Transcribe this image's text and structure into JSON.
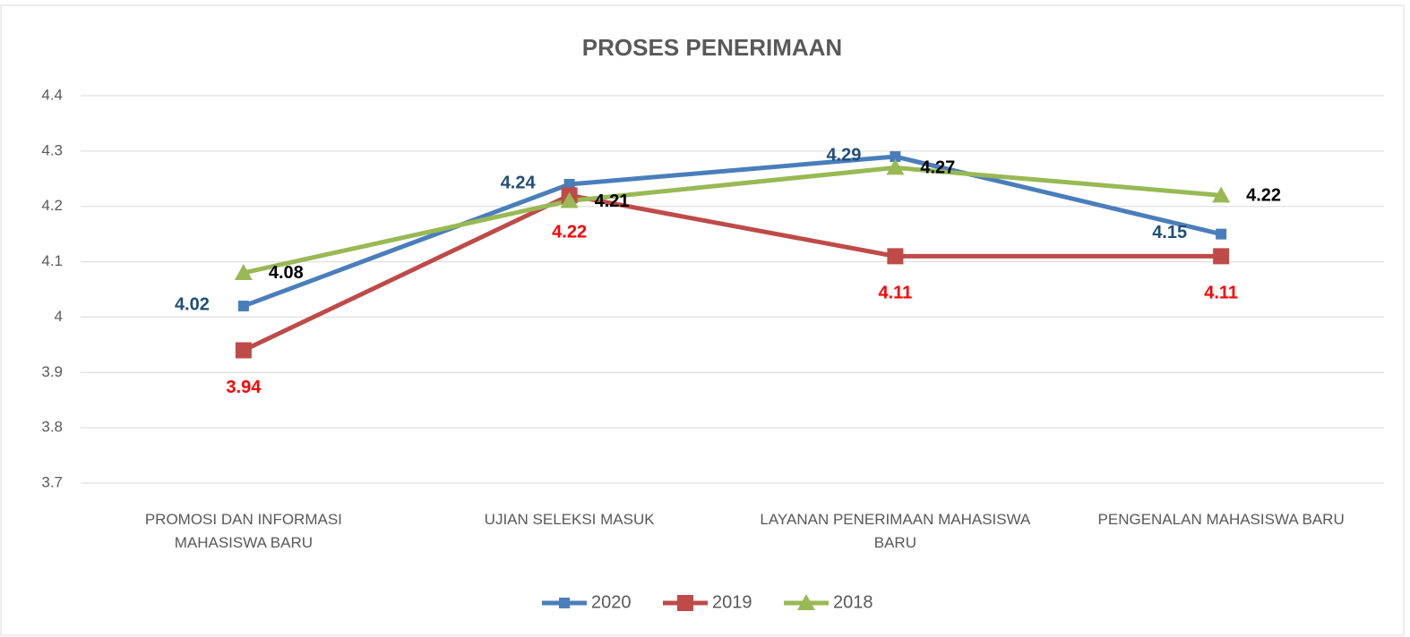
{
  "chart_data": {
    "type": "line",
    "title": "PROSES PENERIMAAN",
    "categories": [
      "PROMOSI DAN INFORMASI MAHASISWA BARU",
      "UJIAN SELEKSI MASUK",
      "LAYANAN PENERIMAAN MAHASISWA BARU",
      "PENGENALAN MAHASISWA BARU"
    ],
    "series": [
      {
        "name": "2020",
        "color": "#4a7ebb",
        "label_color": "#1f4e79",
        "values": [
          4.02,
          4.24,
          4.29,
          4.15
        ]
      },
      {
        "name": "2019",
        "color": "#be4b48",
        "label_color": "#ff0000",
        "values": [
          3.94,
          4.22,
          4.11,
          4.11
        ]
      },
      {
        "name": "2018",
        "color": "#98b954",
        "label_color": "#000000",
        "values": [
          4.08,
          4.21,
          4.27,
          4.22
        ]
      }
    ],
    "ylim": [
      3.7,
      4.4
    ],
    "yticks": [
      3.7,
      3.8,
      3.9,
      4,
      4.1,
      4.2,
      4.3,
      4.4
    ],
    "grid": true,
    "legend": "bottom"
  }
}
